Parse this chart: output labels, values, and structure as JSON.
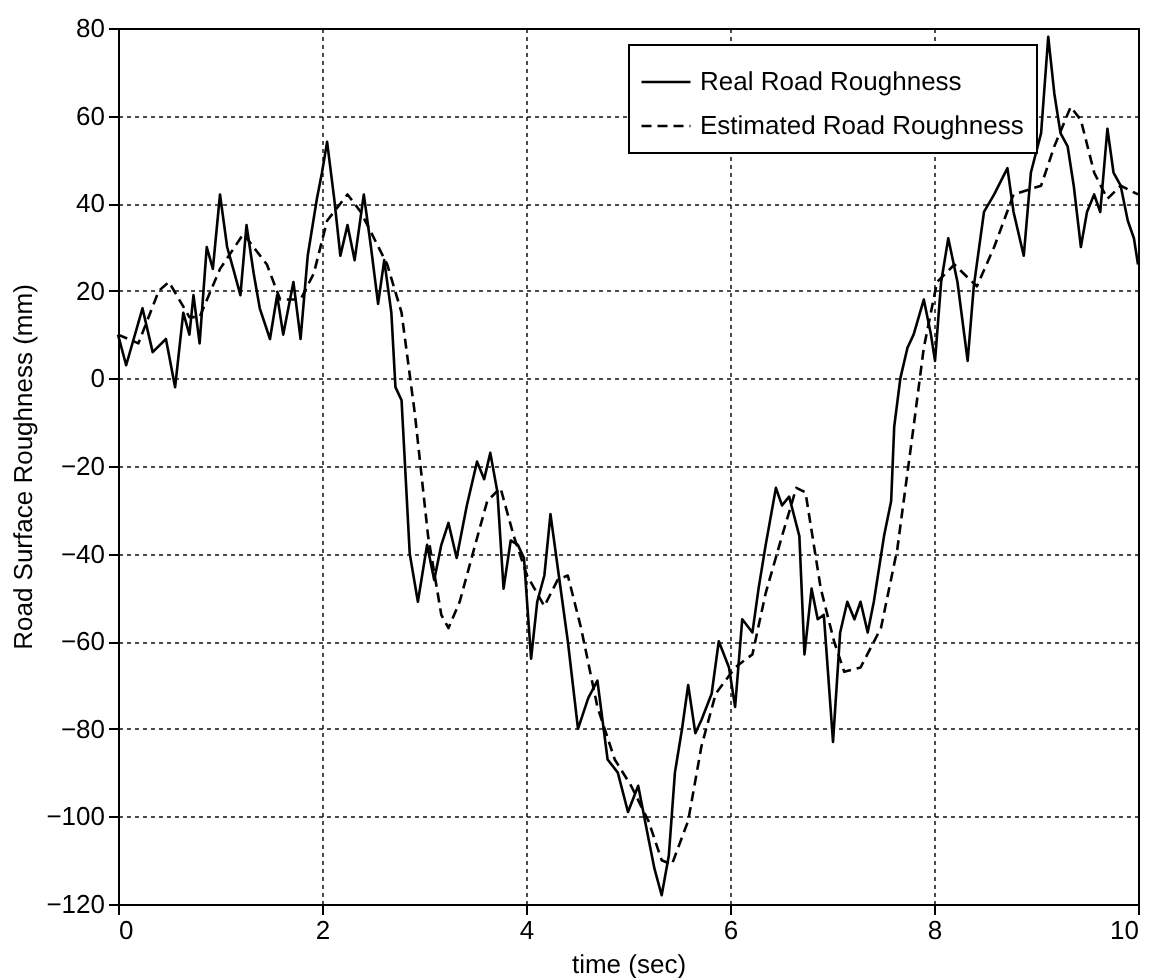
{
  "chart_data": {
    "type": "line",
    "xlabel": "time (sec)",
    "ylabel": "Road Surface Roughness (mm)",
    "xlim": [
      0,
      10
    ],
    "xticks": [
      0,
      2,
      4,
      6,
      8,
      10
    ],
    "ylim": [
      -120,
      80
    ],
    "yticks": [
      -120,
      -100,
      -80,
      -60,
      -40,
      -20,
      0,
      20,
      40,
      60,
      80
    ],
    "grid": true,
    "legend": "top right",
    "marker": "none",
    "series": [
      {
        "name": "Real Road Roughness",
        "color": "#000000",
        "line_style": "solid",
        "x": [
          0,
          0.08,
          0.24,
          0.34,
          0.47,
          0.56,
          0.64,
          0.7,
          0.74,
          0.8,
          0.87,
          0.93,
          1.0,
          1.07,
          1.13,
          1.2,
          1.26,
          1.33,
          1.39,
          1.49,
          1.56,
          1.62,
          1.72,
          1.79,
          1.86,
          1.95,
          2.0,
          2.05,
          2.12,
          2.18,
          2.25,
          2.32,
          2.41,
          2.48,
          2.55,
          2.61,
          2.68,
          2.72,
          2.78,
          2.86,
          2.94,
          3.03,
          3.1,
          3.17,
          3.24,
          3.32,
          3.42,
          3.52,
          3.59,
          3.65,
          3.72,
          3.78,
          3.85,
          3.92,
          3.98,
          4.05,
          4.11,
          4.18,
          4.24,
          4.31,
          4.41,
          4.51,
          4.61,
          4.7,
          4.8,
          4.9,
          5.0,
          5.1,
          5.2,
          5.26,
          5.33,
          5.4,
          5.46,
          5.53,
          5.59,
          5.66,
          5.72,
          5.82,
          5.89,
          5.99,
          6.05,
          6.12,
          6.22,
          6.28,
          6.35,
          6.45,
          6.51,
          6.58,
          6.68,
          6.73,
          6.8,
          6.86,
          6.92,
          7.01,
          7.08,
          7.15,
          7.22,
          7.28,
          7.35,
          7.41,
          7.51,
          7.58,
          7.61,
          7.67,
          7.74,
          7.8,
          7.9,
          7.97,
          8.01,
          8.07,
          8.14,
          8.23,
          8.33,
          8.39,
          8.49,
          8.59,
          8.72,
          8.78,
          8.88,
          8.95,
          9.05,
          9.12,
          9.18,
          9.24,
          9.31,
          9.37,
          9.44,
          9.5,
          9.57,
          9.63,
          9.7,
          9.76,
          9.83,
          9.9,
          9.96,
          10.0
        ],
        "values": [
          10,
          3,
          16,
          6,
          9,
          -2,
          15,
          10,
          19,
          8,
          30,
          25,
          42,
          30,
          25,
          19,
          35,
          24,
          16,
          9,
          19,
          10,
          22,
          9,
          28,
          41,
          47,
          54,
          41,
          28,
          35,
          27,
          42,
          30,
          17,
          27,
          15,
          -2,
          -5,
          -40,
          -51,
          -38,
          -46,
          -38,
          -33,
          -41,
          -29,
          -19,
          -23,
          -17,
          -26,
          -48,
          -37,
          -38,
          -41,
          -64,
          -51,
          -45,
          -31,
          -43,
          -60,
          -80,
          -73,
          -69,
          -87,
          -90,
          -99,
          -93,
          -105,
          -112,
          -118,
          -109,
          -90,
          -80,
          -70,
          -81,
          -78,
          -72,
          -60,
          -66,
          -75,
          -55,
          -58,
          -48,
          -38,
          -25,
          -29,
          -27,
          -36,
          -63,
          -48,
          -55,
          -54,
          -83,
          -58,
          -51,
          -55,
          -51,
          -58,
          -51,
          -36,
          -28,
          -11,
          0,
          7,
          10,
          18,
          10,
          4,
          22,
          32,
          22,
          4,
          21,
          38,
          42,
          48,
          38,
          28,
          47,
          56,
          78,
          65,
          56,
          53,
          44,
          30,
          38,
          42,
          38,
          57,
          47,
          44,
          36,
          32,
          26
        ]
      },
      {
        "name": "Estimated Road Roughness",
        "color": "#000000",
        "line_style": "dashed",
        "x": [
          0,
          0.2,
          0.4,
          0.5,
          0.7,
          0.8,
          1.0,
          1.23,
          1.46,
          1.59,
          1.79,
          1.92,
          2.05,
          2.25,
          2.38,
          2.64,
          2.78,
          2.91,
          3.04,
          3.17,
          3.24,
          3.35,
          3.49,
          3.62,
          3.75,
          3.88,
          4.01,
          4.18,
          4.31,
          4.41,
          4.54,
          4.7,
          4.87,
          5.03,
          5.2,
          5.33,
          5.43,
          5.59,
          5.72,
          5.86,
          6.05,
          6.22,
          6.35,
          6.51,
          6.65,
          6.74,
          6.89,
          7.02,
          7.12,
          7.28,
          7.48,
          7.64,
          7.8,
          7.9,
          8.03,
          8.2,
          8.42,
          8.59,
          8.78,
          9.05,
          9.18,
          9.34,
          9.44,
          9.57,
          9.7,
          9.83,
          10.0
        ],
        "values": [
          10,
          8,
          20,
          22,
          14,
          14,
          25,
          33,
          26,
          18,
          18,
          24,
          36,
          42,
          38,
          26,
          15,
          -8,
          -36,
          -54,
          -57,
          -51,
          -39,
          -28,
          -25,
          -36,
          -45,
          -52,
          -46,
          -45,
          -57,
          -75,
          -87,
          -93,
          -101,
          -110,
          -111,
          -101,
          -84,
          -72,
          -66,
          -63,
          -49,
          -36,
          -25,
          -26,
          -48,
          -60,
          -67,
          -66,
          -57,
          -39,
          -11,
          7,
          22,
          26,
          21,
          30,
          42,
          44,
          53,
          62,
          59,
          47,
          41,
          44,
          42
        ]
      }
    ]
  }
}
